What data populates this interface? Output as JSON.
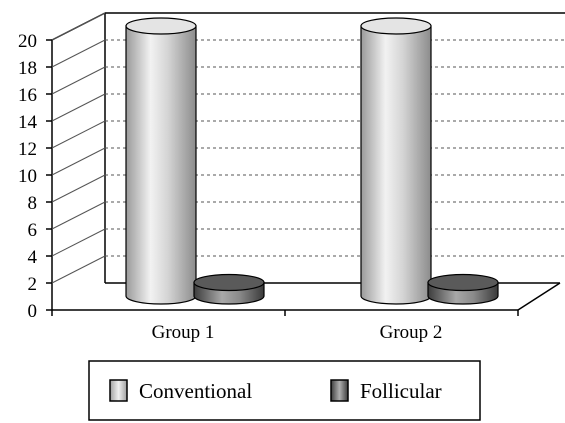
{
  "chart_data": {
    "type": "bar",
    "categories": [
      "Group 1",
      "Group 2"
    ],
    "series": [
      {
        "name": "Conventional",
        "values": [
          20,
          20
        ]
      },
      {
        "name": "Follicular",
        "values": [
          1,
          1
        ]
      }
    ],
    "ylim": [
      0,
      20
    ],
    "yticks": [
      0,
      2,
      4,
      6,
      8,
      10,
      12,
      14,
      16,
      18,
      20
    ],
    "grid": true,
    "legend_position": "bottom",
    "bar_shape": "cylinder-3d",
    "colors": {
      "Conventional": "#cfcfcf",
      "Follicular": "#7a7a7a",
      "gridline": "#555555",
      "axis": "#000000"
    }
  }
}
